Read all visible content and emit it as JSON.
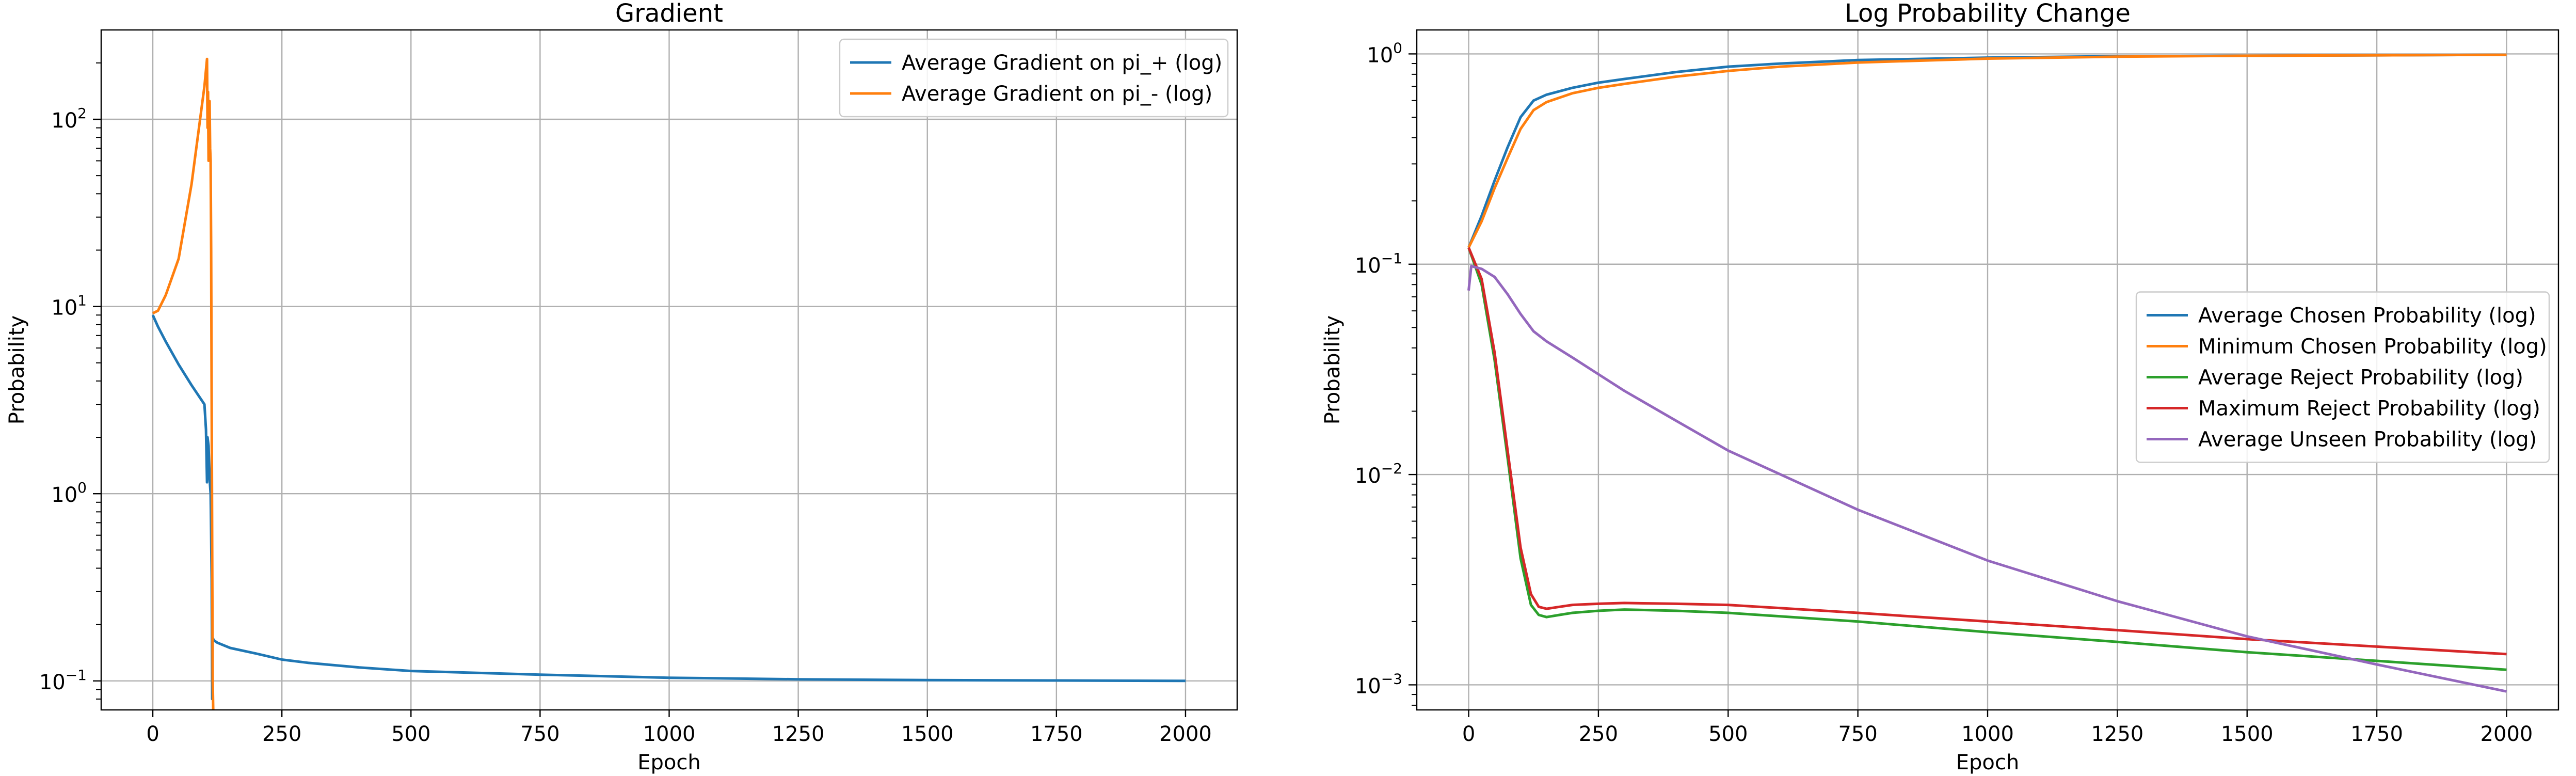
{
  "chart_data": [
    {
      "type": "line",
      "title": "Gradient",
      "xlabel": "Epoch",
      "ylabel": "Probability",
      "yscale": "log",
      "xlim": [
        -100,
        2100
      ],
      "ylim": [
        0.07,
        300
      ],
      "xticks": [
        0,
        250,
        500,
        750,
        1000,
        1250,
        1500,
        1750,
        2000
      ],
      "xtick_labels": [
        "0",
        "250",
        "500",
        "750",
        "1000",
        "1250",
        "1500",
        "1750",
        "2000"
      ],
      "yticks": [
        0.1,
        1,
        10,
        100
      ],
      "ytick_labels": [
        [
          "10",
          "−1"
        ],
        [
          "10",
          "0"
        ],
        [
          "10",
          "1"
        ],
        [
          "10",
          "2"
        ]
      ],
      "grid": true,
      "legend_position": "top-right",
      "series": [
        {
          "name": "Average Gradient on pi_+ (log)",
          "color": "#1f77b4",
          "x": [
            0,
            10,
            25,
            50,
            75,
            100,
            103,
            105,
            106,
            108,
            110,
            112,
            113,
            114,
            115,
            116,
            118,
            125,
            150,
            200,
            250,
            300,
            400,
            500,
            750,
            1000,
            1250,
            1500,
            1750,
            2000
          ],
          "y": [
            9.0,
            7.8,
            6.5,
            4.9,
            3.8,
            3.0,
            2.2,
            1.15,
            2.0,
            1.8,
            1.2,
            1.0,
            0.6,
            0.35,
            0.08,
            0.17,
            0.165,
            0.16,
            0.15,
            0.14,
            0.13,
            0.125,
            0.118,
            0.113,
            0.108,
            0.104,
            0.102,
            0.101,
            0.1005,
            0.1
          ]
        },
        {
          "name": "Average Gradient on pi_- (log)",
          "color": "#ff7f0e",
          "x": [
            0,
            10,
            25,
            50,
            75,
            100,
            105,
            106,
            107,
            108,
            110,
            111,
            112,
            113,
            114,
            115,
            116,
            117
          ],
          "y": [
            9.2,
            9.5,
            11.5,
            18,
            45,
            150,
            210,
            90,
            140,
            60,
            125,
            70,
            60,
            20,
            3,
            0.5,
            0.1,
            0.07
          ]
        }
      ]
    },
    {
      "type": "line",
      "title": "Log Probability Change",
      "xlabel": "Epoch",
      "ylabel": "Probability",
      "yscale": "log",
      "xlim": [
        -100,
        2100
      ],
      "ylim": [
        0.00076,
        1.3
      ],
      "xticks": [
        0,
        250,
        500,
        750,
        1000,
        1250,
        1500,
        1750,
        2000
      ],
      "xtick_labels": [
        "0",
        "250",
        "500",
        "750",
        "1000",
        "1250",
        "1500",
        "1750",
        "2000"
      ],
      "yticks": [
        0.001,
        0.01,
        0.1,
        1
      ],
      "ytick_labels": [
        [
          "10",
          "−3"
        ],
        [
          "10",
          "−2"
        ],
        [
          "10",
          "−1"
        ],
        [
          "10",
          "0"
        ]
      ],
      "grid": true,
      "legend_position": "center-right",
      "series": [
        {
          "name": "Average Chosen Probability (log)",
          "color": "#1f77b4",
          "x": [
            0,
            25,
            50,
            75,
            100,
            125,
            150,
            200,
            250,
            300,
            400,
            500,
            600,
            750,
            1000,
            1250,
            1500,
            1750,
            2000
          ],
          "y": [
            0.12,
            0.17,
            0.25,
            0.36,
            0.5,
            0.6,
            0.64,
            0.69,
            0.73,
            0.76,
            0.82,
            0.87,
            0.9,
            0.935,
            0.96,
            0.975,
            0.98,
            0.985,
            0.99
          ]
        },
        {
          "name": "Minimum Chosen Probability (log)",
          "color": "#ff7f0e",
          "x": [
            0,
            25,
            50,
            75,
            100,
            125,
            150,
            200,
            250,
            300,
            400,
            500,
            600,
            750,
            1000,
            1250,
            1500,
            1750,
            2000
          ],
          "y": [
            0.12,
            0.16,
            0.23,
            0.32,
            0.44,
            0.54,
            0.59,
            0.65,
            0.69,
            0.72,
            0.78,
            0.83,
            0.87,
            0.91,
            0.95,
            0.97,
            0.98,
            0.985,
            0.99
          ]
        },
        {
          "name": "Average Reject Probability (log)",
          "color": "#2ca02c",
          "x": [
            0,
            25,
            50,
            75,
            100,
            120,
            135,
            150,
            175,
            200,
            250,
            300,
            400,
            500,
            750,
            1000,
            1250,
            1500,
            1750,
            2000
          ],
          "y": [
            0.12,
            0.08,
            0.035,
            0.012,
            0.004,
            0.0024,
            0.00215,
            0.0021,
            0.00215,
            0.0022,
            0.00225,
            0.00228,
            0.00225,
            0.0022,
            0.002,
            0.00178,
            0.0016,
            0.00143,
            0.0013,
            0.00118
          ]
        },
        {
          "name": "Maximum Reject Probability (log)",
          "color": "#d62728",
          "x": [
            0,
            25,
            50,
            75,
            100,
            120,
            135,
            150,
            175,
            200,
            250,
            300,
            400,
            500,
            750,
            1000,
            1250,
            1500,
            1750,
            2000
          ],
          "y": [
            0.12,
            0.085,
            0.038,
            0.013,
            0.0045,
            0.0027,
            0.00235,
            0.0023,
            0.00235,
            0.0024,
            0.00243,
            0.00245,
            0.00243,
            0.0024,
            0.0022,
            0.002,
            0.00182,
            0.00165,
            0.00152,
            0.0014
          ]
        },
        {
          "name": "Average Unseen Probability (log)",
          "color": "#9467bd",
          "x": [
            0,
            5,
            25,
            50,
            75,
            100,
            125,
            150,
            200,
            250,
            300,
            400,
            500,
            750,
            1000,
            1250,
            1500,
            1750,
            2000
          ],
          "y": [
            0.075,
            0.098,
            0.095,
            0.087,
            0.072,
            0.058,
            0.048,
            0.043,
            0.036,
            0.03,
            0.025,
            0.018,
            0.013,
            0.0068,
            0.0039,
            0.0025,
            0.0017,
            0.00125,
            0.00093
          ]
        }
      ]
    }
  ]
}
